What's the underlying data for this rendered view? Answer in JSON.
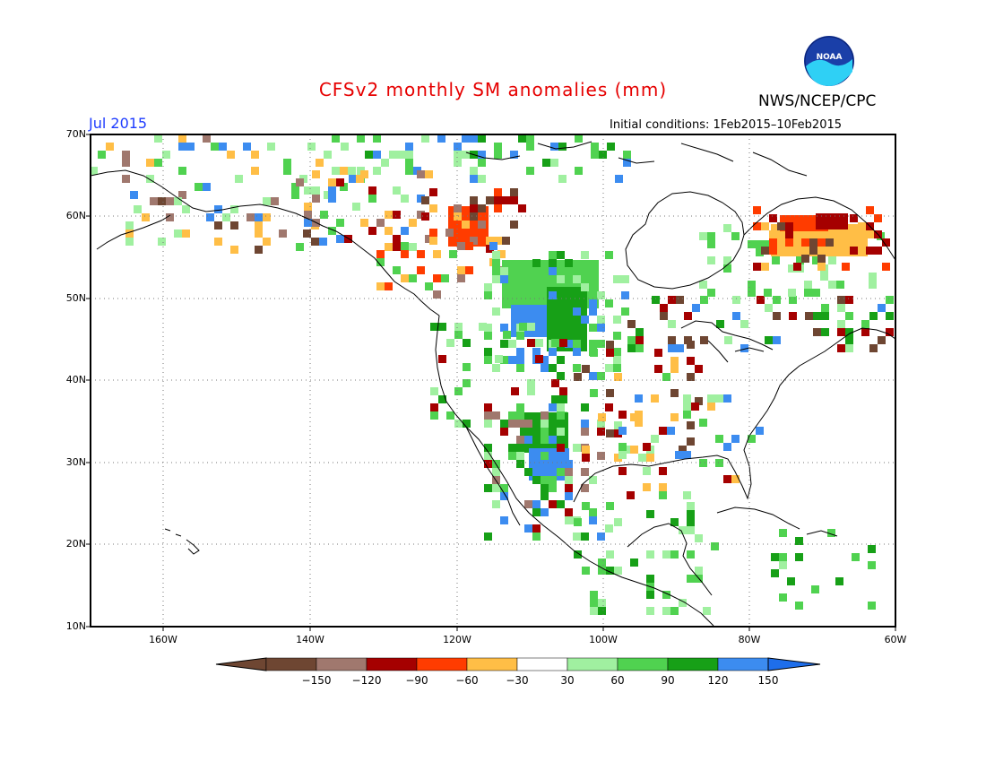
{
  "title": "CFSv2 monthly SM anomalies (mm)",
  "period": "Jul 2015",
  "agency": "NWS/NCEP/CPC",
  "initial_conditions": "Initial conditions: 1Feb2015–10Feb2015",
  "logo_text": "NOAA",
  "colors": {
    "title": "#e60000",
    "period": "#1e3cff",
    "n150": "#6e4632",
    "n120": "#a0786e",
    "n90": "#a50000",
    "n60": "#ff3c00",
    "n30": "#ffbe46",
    "neutral": "#ffffff",
    "p30": "#a0f0a0",
    "p60": "#50d250",
    "p90": "#17a017",
    "p120": "#3c8cf0",
    "p150": "#1e6eeb"
  },
  "lat_labels": [
    "70N",
    "60N",
    "50N",
    "40N",
    "30N",
    "20N",
    "10N"
  ],
  "lon_labels": [
    "160W",
    "140W",
    "120W",
    "100W",
    "80W",
    "60W"
  ],
  "colorbar_labels": [
    "−150",
    "−120",
    "−90",
    "−60",
    "−30",
    "30",
    "60",
    "90",
    "120",
    "150"
  ]
}
